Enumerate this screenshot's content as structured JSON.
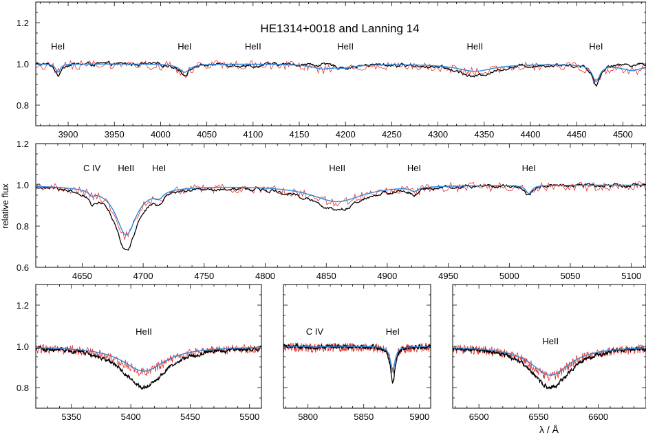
{
  "figure": {
    "title": "HE1314+0018  and  Lanning 14",
    "ylabel": "relative flux",
    "xlabel": "λ / Å"
  },
  "colors": {
    "observed_star": "#000000",
    "comparison_star": "#e8302a",
    "model": "#2a8ae0",
    "axes": "#000000"
  },
  "chart_data": [
    {
      "type": "line",
      "panel": "top",
      "title": "HE1314+0018  and  Lanning 14",
      "xlim": [
        3865,
        4525
      ],
      "ylim": [
        0.7,
        1.3
      ],
      "xticks": [
        3900,
        3950,
        4000,
        4050,
        4100,
        4150,
        4200,
        4250,
        4300,
        4350,
        4400,
        4450,
        4500
      ],
      "yticks": [
        0.8,
        1.0,
        1.2
      ],
      "ytick_labels": [
        "0.8",
        "1.0",
        "1.2"
      ],
      "lines": [
        {
          "label": "HeI",
          "x": 3889,
          "depth_obs": 0.06,
          "depth_model": 0.04,
          "width": 3
        },
        {
          "label": "HeI",
          "x": 4026,
          "depth_obs": 0.05,
          "depth_model": 0.04,
          "width": 7
        },
        {
          "label": "HeII",
          "x": 4100,
          "depth_obs": 0.01,
          "depth_model": 0.0,
          "width": 10
        },
        {
          "label": "HeII",
          "x": 4200,
          "depth_obs": 0.015,
          "depth_model": 0.015,
          "width": 14
        },
        {
          "label": "HeII",
          "x": 4340,
          "depth_obs": 0.06,
          "depth_model": 0.035,
          "width": 24
        },
        {
          "label": "HeI",
          "x": 4471,
          "depth_obs": 0.1,
          "depth_model": 0.08,
          "width": 5
        }
      ],
      "extra_features": [
        {
          "x": 4175,
          "depth_obs": 0.0,
          "depth_model": 0.02,
          "width": 14
        },
        {
          "x": 4510,
          "depth_obs": 0.0,
          "depth_model": 0.03,
          "width": 15
        }
      ]
    },
    {
      "type": "line",
      "panel": "middle",
      "xlim": [
        4612,
        5112
      ],
      "ylim": [
        0.6,
        1.2
      ],
      "xticks": [
        4650,
        4700,
        4750,
        4800,
        4850,
        4900,
        4950,
        5000,
        5050,
        5100
      ],
      "yticks": [
        0.6,
        0.8,
        1.0,
        1.2
      ],
      "ytick_labels": [
        "0.6",
        "0.8",
        "1.0",
        "1.2"
      ],
      "lines": [
        {
          "label": "C IV",
          "x": 4658,
          "depth_obs": 0.05,
          "depth_model": 0.02,
          "width": 3
        },
        {
          "label": "HeII",
          "x": 4686,
          "depth_obs": 0.28,
          "depth_model": 0.22,
          "width": 10
        },
        {
          "label": "HeI",
          "x": 4713,
          "depth_obs": 0.04,
          "depth_model": 0.03,
          "width": 4
        },
        {
          "label": "HeII",
          "x": 4859,
          "depth_obs": 0.12,
          "depth_model": 0.08,
          "width": 26
        },
        {
          "label": "HeI",
          "x": 4922,
          "depth_obs": 0.03,
          "depth_model": 0.02,
          "width": 4
        },
        {
          "label": "HeI",
          "x": 5016,
          "depth_obs": 0.05,
          "depth_model": 0.04,
          "width": 3
        }
      ],
      "extra_features": [
        {
          "x": 4690,
          "depth_obs": 0.04,
          "depth_model": 0.02,
          "width": 30
        }
      ]
    },
    {
      "type": "line",
      "panel": "bottom-left",
      "xlim": [
        5320,
        5510
      ],
      "ylim": [
        0.7,
        1.3
      ],
      "xticks": [
        5350,
        5400,
        5450,
        5500
      ],
      "yticks": [
        0.8,
        1.0,
        1.2
      ],
      "ytick_labels": [
        "0.8",
        "1.0",
        "1.2"
      ],
      "lines": [
        {
          "label": "HeII",
          "x": 5411,
          "depth_obs": 0.2,
          "depth_model": 0.12,
          "width": 22
        }
      ],
      "extra_features": []
    },
    {
      "type": "line",
      "panel": "bottom-middle",
      "xlim": [
        5778,
        5910
      ],
      "ylim": [
        0.7,
        1.3
      ],
      "xticks": [
        5800,
        5850,
        5900
      ],
      "yticks": [
        0.8,
        1.0,
        1.2
      ],
      "ytick_labels": [
        "",
        "",
        ""
      ],
      "lines": [
        {
          "label": "C IV",
          "x": 5806,
          "depth_obs": 0.01,
          "depth_model": 0.005,
          "width": 3
        },
        {
          "label": "HeI",
          "x": 5876,
          "depth_obs": 0.18,
          "depth_model": 0.12,
          "width": 2.5
        }
      ],
      "extra_features": []
    },
    {
      "type": "line",
      "panel": "bottom-right",
      "xlim": [
        6478,
        6640
      ],
      "ylim": [
        0.7,
        1.3
      ],
      "xticks": [
        6500,
        6550,
        6600
      ],
      "yticks": [
        0.8,
        1.0,
        1.2
      ],
      "ytick_labels": [
        "",
        "",
        ""
      ],
      "lines": [
        {
          "label": "HeII",
          "x": 6560,
          "depth_obs": 0.2,
          "depth_model": 0.14,
          "width": 20
        }
      ],
      "extra_features": []
    }
  ]
}
